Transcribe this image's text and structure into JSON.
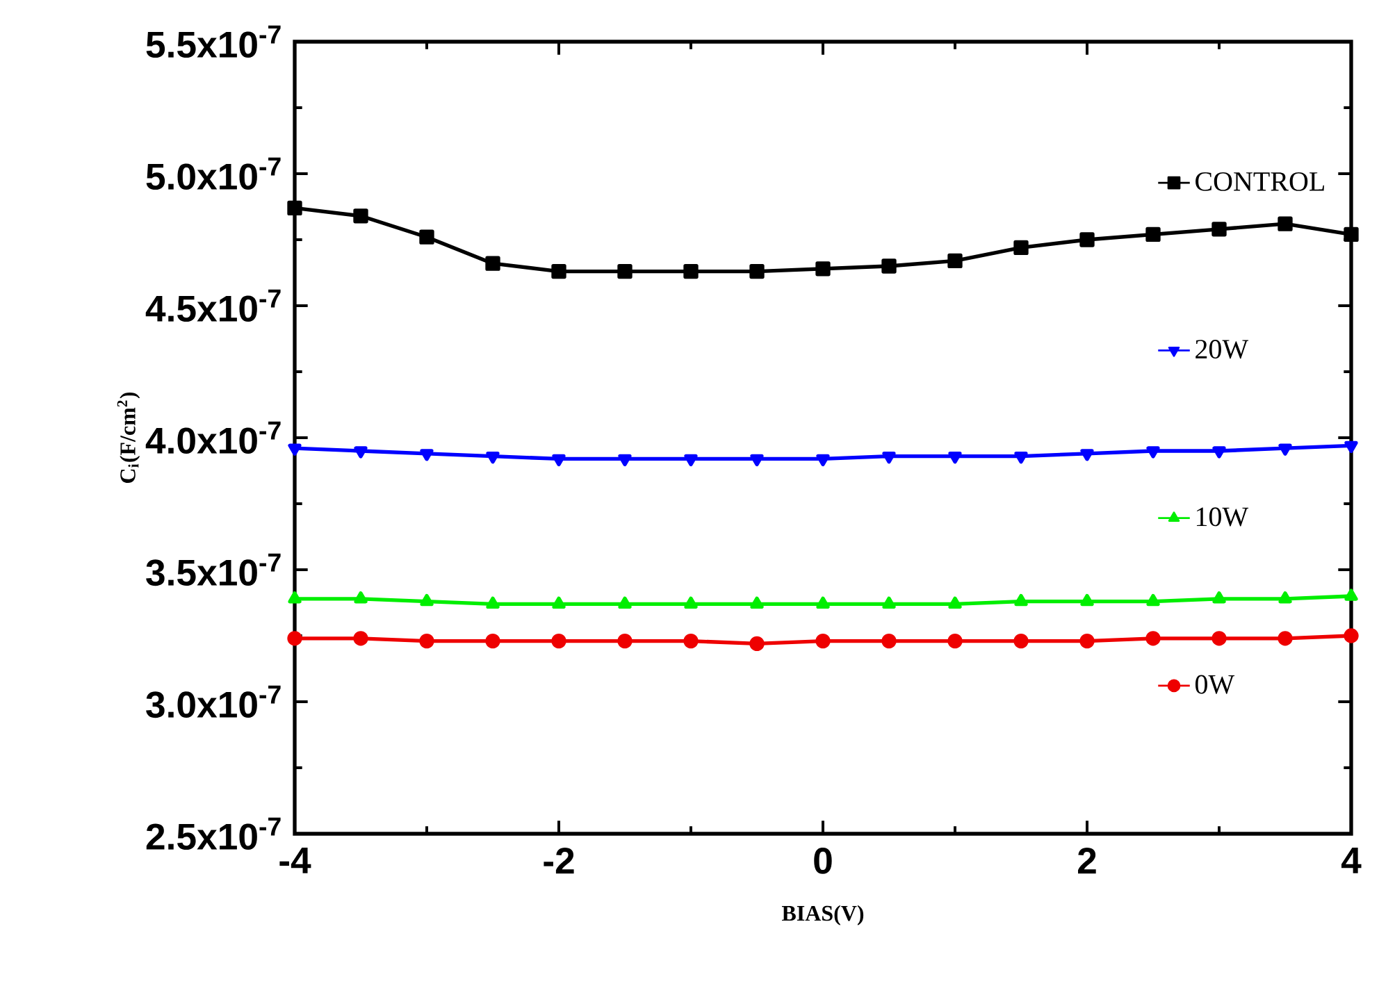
{
  "chart_data": {
    "type": "line",
    "xlabel": "BIAS(V)",
    "ylabel": "C$_{i}$(F/cm$^{2}$)",
    "xlim": [
      -4,
      4
    ],
    "xticks": [
      -4,
      -2,
      0,
      2,
      4
    ],
    "ylim": [
      2.5e-07,
      5.5e-07
    ],
    "yticks": [
      {
        "value": 2.5e-07,
        "label": "2.5x10$^{-7}$"
      },
      {
        "value": 3e-07,
        "label": "3.0x10$^{-7}$"
      },
      {
        "value": 3.5e-07,
        "label": "3.5x10$^{-7}$"
      },
      {
        "value": 4e-07,
        "label": "4.0x10$^{-7}$"
      },
      {
        "value": 4.5e-07,
        "label": "4.5x10$^{-7}$"
      },
      {
        "value": 5e-07,
        "label": "5.0x10$^{-7}$"
      },
      {
        "value": 5.5e-07,
        "label": "5.5x10$^{-7}$"
      }
    ],
    "x": [
      -4,
      -3.5,
      -3,
      -2.5,
      -2,
      -1.5,
      -1,
      -0.5,
      0,
      0.5,
      1,
      1.5,
      2,
      2.5,
      3,
      3.5,
      4
    ],
    "grid": false,
    "line_style": "solid",
    "legend": "right",
    "series": [
      {
        "name": "CONTROL",
        "color": "#000000",
        "marker": "square",
        "values": [
          4.87e-07,
          4.84e-07,
          4.76e-07,
          4.66e-07,
          4.63e-07,
          4.63e-07,
          4.63e-07,
          4.63e-07,
          4.64e-07,
          4.65e-07,
          4.67e-07,
          4.72e-07,
          4.75e-07,
          4.77e-07,
          4.79e-07,
          4.81e-07,
          4.77e-07
        ]
      },
      {
        "name": "20W",
        "color": "#0000ff",
        "marker": "triangle-down",
        "values": [
          3.96e-07,
          3.95e-07,
          3.94e-07,
          3.93e-07,
          3.92e-07,
          3.92e-07,
          3.92e-07,
          3.92e-07,
          3.92e-07,
          3.93e-07,
          3.93e-07,
          3.93e-07,
          3.94e-07,
          3.95e-07,
          3.95e-07,
          3.96e-07,
          3.97e-07
        ]
      },
      {
        "name": "10W",
        "color": "#00ee00",
        "marker": "triangle",
        "values": [
          3.39e-07,
          3.39e-07,
          3.38e-07,
          3.37e-07,
          3.37e-07,
          3.37e-07,
          3.37e-07,
          3.37e-07,
          3.37e-07,
          3.37e-07,
          3.37e-07,
          3.38e-07,
          3.38e-07,
          3.38e-07,
          3.39e-07,
          3.39e-07,
          3.4e-07
        ]
      },
      {
        "name": "0W",
        "color": "#ee0000",
        "marker": "circle",
        "values": [
          3.24e-07,
          3.24e-07,
          3.23e-07,
          3.23e-07,
          3.23e-07,
          3.23e-07,
          3.23e-07,
          3.22e-07,
          3.23e-07,
          3.23e-07,
          3.23e-07,
          3.23e-07,
          3.23e-07,
          3.24e-07,
          3.24e-07,
          3.24e-07,
          3.25e-07
        ]
      }
    ]
  }
}
